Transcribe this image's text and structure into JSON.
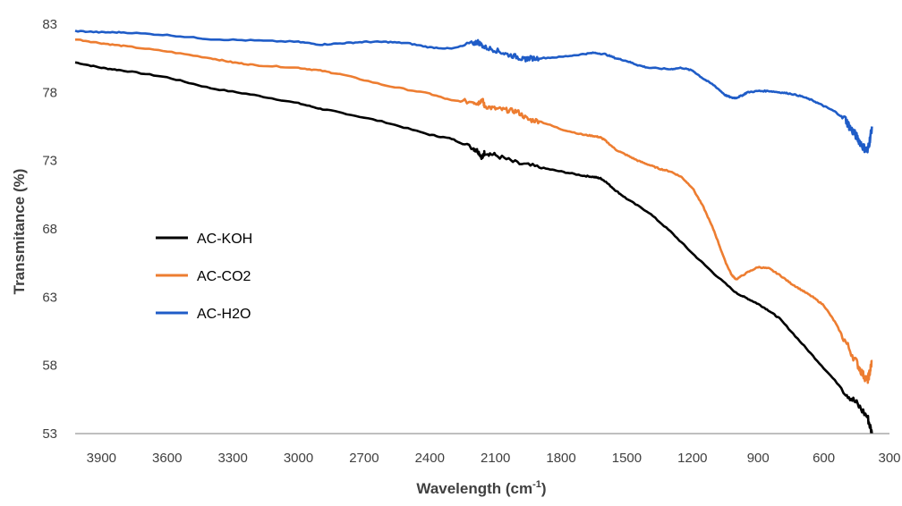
{
  "chart_data": {
    "type": "line",
    "title": "",
    "xlabel": "Wavelength (cm",
    "xlabel_sup": "-1",
    "xlabel_close": ")",
    "ylabel": "Transmitance (%)",
    "xlim": [
      4020,
      300
    ],
    "ylim": [
      53,
      83
    ],
    "xticks": [
      3900,
      3600,
      3300,
      3000,
      2700,
      2400,
      2100,
      1800,
      1500,
      1200,
      900,
      600,
      300
    ],
    "yticks": [
      53,
      58,
      63,
      68,
      73,
      78,
      83
    ],
    "grid": false,
    "legend_position": "left-middle",
    "series": [
      {
        "name": "AC-KOH",
        "color": "#000000",
        "x": [
          4020,
          3900,
          3800,
          3600,
          3400,
          3200,
          3000,
          2900,
          2800,
          2600,
          2400,
          2300,
          2200,
          2180,
          2160,
          2150,
          2100,
          2000,
          1900,
          1800,
          1700,
          1650,
          1620,
          1600,
          1550,
          1500,
          1400,
          1300,
          1200,
          1100,
          1000,
          950,
          900,
          850,
          800,
          700,
          600,
          500,
          450,
          400,
          380
        ],
        "y": [
          80.2,
          79.8,
          79.6,
          79.1,
          78.3,
          77.8,
          77.2,
          76.8,
          76.5,
          75.8,
          74.9,
          74.6,
          73.9,
          73.7,
          73.2,
          73.6,
          73.4,
          72.8,
          72.5,
          72.2,
          71.9,
          71.8,
          71.7,
          71.5,
          70.8,
          70.2,
          69.2,
          67.8,
          66.2,
          64.7,
          63.3,
          62.9,
          62.5,
          62.0,
          61.4,
          59.6,
          57.8,
          56.0,
          55.2,
          54.2,
          53.0
        ]
      },
      {
        "name": "AC-CO2",
        "color": "#ED7D31",
        "x": [
          4020,
          3900,
          3800,
          3600,
          3400,
          3300,
          3200,
          3000,
          2900,
          2800,
          2600,
          2400,
          2300,
          2200,
          2180,
          2160,
          2150,
          2100,
          2050,
          2000,
          1950,
          1900,
          1800,
          1700,
          1650,
          1620,
          1600,
          1550,
          1500,
          1450,
          1400,
          1350,
          1300,
          1250,
          1200,
          1150,
          1100,
          1050,
          1020,
          1000,
          950,
          900,
          850,
          800,
          750,
          700,
          650,
          600,
          550,
          500,
          450,
          420,
          400,
          390,
          380
        ],
        "y": [
          81.9,
          81.6,
          81.4,
          81.0,
          80.5,
          80.2,
          80.0,
          79.8,
          79.6,
          79.3,
          78.5,
          77.9,
          77.4,
          77.3,
          77.2,
          77.5,
          77.0,
          76.8,
          76.7,
          76.6,
          76.0,
          75.9,
          75.3,
          74.9,
          74.8,
          74.7,
          74.5,
          73.8,
          73.4,
          73.0,
          72.7,
          72.4,
          72.2,
          71.8,
          71.0,
          69.6,
          67.8,
          65.6,
          64.6,
          64.3,
          64.8,
          65.2,
          65.1,
          64.6,
          64.0,
          63.5,
          63.0,
          62.4,
          61.2,
          59.7,
          58.2,
          57.3,
          56.9,
          57.5,
          58.3
        ]
      },
      {
        "name": "AC-H2O",
        "color": "#1F5CC7",
        "x": [
          4020,
          3900,
          3800,
          3600,
          3400,
          3200,
          3000,
          2900,
          2800,
          2700,
          2600,
          2500,
          2400,
          2300,
          2200,
          2180,
          2150,
          2100,
          2050,
          2000,
          1970,
          1950,
          1900,
          1800,
          1700,
          1650,
          1600,
          1550,
          1500,
          1450,
          1400,
          1300,
          1250,
          1200,
          1150,
          1100,
          1050,
          1020,
          1000,
          970,
          950,
          900,
          850,
          800,
          750,
          700,
          650,
          600,
          550,
          500,
          480,
          460,
          440,
          420,
          400,
          390,
          380
        ],
        "y": [
          82.5,
          82.4,
          82.4,
          82.2,
          81.9,
          81.8,
          81.7,
          81.5,
          81.6,
          81.7,
          81.7,
          81.6,
          81.3,
          81.2,
          81.6,
          81.7,
          81.3,
          81.1,
          80.8,
          80.6,
          80.4,
          80.5,
          80.5,
          80.6,
          80.8,
          80.9,
          80.8,
          80.5,
          80.3,
          80.0,
          79.8,
          79.7,
          79.8,
          79.6,
          79.0,
          78.5,
          77.8,
          77.6,
          77.6,
          77.8,
          78.0,
          78.1,
          78.1,
          78.0,
          77.9,
          77.7,
          77.4,
          77.0,
          76.6,
          76.0,
          75.4,
          75.0,
          74.5,
          74.0,
          73.7,
          74.5,
          75.5
        ]
      }
    ]
  }
}
